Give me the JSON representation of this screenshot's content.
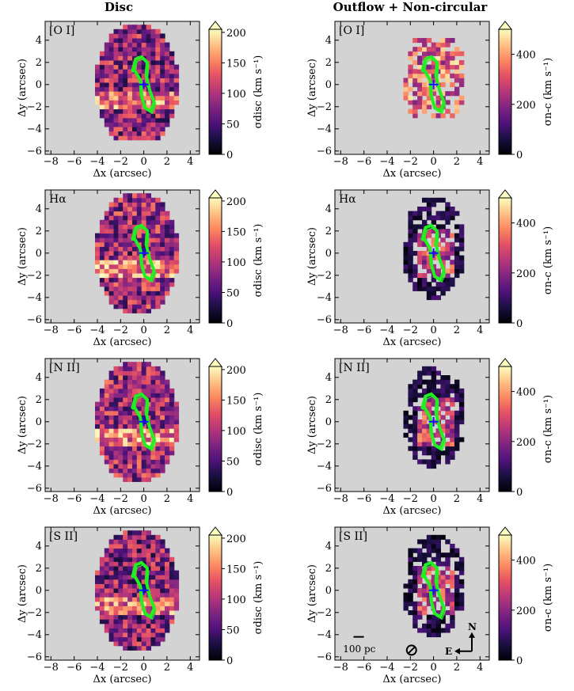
{
  "column_titles": {
    "disc": "Disc",
    "outflow": "Outflow + Non-circular"
  },
  "chart_data": {
    "type": "heatmap",
    "x_label": "Δx (arcsec)",
    "y_label": "Δy (arcsec)",
    "xlim": [
      -8.5,
      4.8
    ],
    "ylim": [
      -6.3,
      5.7
    ],
    "x_ticks": [
      -8,
      -6,
      -4,
      -2,
      0,
      2,
      4
    ],
    "y_ticks": [
      -6,
      -4,
      -2,
      0,
      2,
      4
    ],
    "x_tick_labels": [
      "−8",
      "−6",
      "−4",
      "−2",
      "0",
      "2",
      "4"
    ],
    "y_tick_labels": [
      "−6",
      "−4",
      "−2",
      "0",
      "2",
      "4"
    ],
    "colormap": "magma",
    "lines": [
      "[O I]",
      "Hα",
      "[N II]",
      "[S II]"
    ],
    "panels": [
      {
        "column": "disc",
        "line": "[O I]",
        "label": "[O I]",
        "cbar_label": "σdisc (km s⁻¹)",
        "cbar_range": [
          0,
          205
        ],
        "cbar_ticks": [
          0,
          50,
          100,
          150,
          200
        ],
        "cbar_tick_labels": [
          "0",
          "50",
          "100",
          "150",
          "200"
        ],
        "mean_sigma": 85
      },
      {
        "column": "outflow",
        "line": "[O I]",
        "label": "[O I]",
        "cbar_label": "σn-c (km s⁻¹)",
        "cbar_range": [
          0,
          500
        ],
        "cbar_ticks": [
          0,
          200,
          400
        ],
        "cbar_tick_labels": [
          "0",
          "200",
          "400"
        ],
        "mean_sigma": 120
      },
      {
        "column": "disc",
        "line": "Hα",
        "label": "Hα",
        "cbar_label": "σdisc (km s⁻¹)",
        "cbar_range": [
          0,
          205
        ],
        "cbar_ticks": [
          0,
          50,
          100,
          150,
          200
        ],
        "cbar_tick_labels": [
          "0",
          "50",
          "100",
          "150",
          "200"
        ],
        "mean_sigma": 90
      },
      {
        "column": "outflow",
        "line": "Hα",
        "label": "Hα",
        "cbar_label": "σn-c (km s⁻¹)",
        "cbar_range": [
          0,
          500
        ],
        "cbar_ticks": [
          0,
          200,
          400
        ],
        "cbar_tick_labels": [
          "0",
          "200",
          "400"
        ],
        "mean_sigma": 90
      },
      {
        "column": "disc",
        "line": "[N II]",
        "label": "[N II]",
        "cbar_label": "σdisc (km s⁻¹)",
        "cbar_range": [
          0,
          205
        ],
        "cbar_ticks": [
          0,
          50,
          100,
          150,
          200
        ],
        "cbar_tick_labels": [
          "0",
          "50",
          "100",
          "150",
          "200"
        ],
        "mean_sigma": 90
      },
      {
        "column": "outflow",
        "line": "[N II]",
        "label": "[N II]",
        "cbar_label": "σn-c (km s⁻¹)",
        "cbar_range": [
          0,
          500
        ],
        "cbar_ticks": [
          0,
          200,
          400
        ],
        "cbar_tick_labels": [
          "0",
          "200",
          "400"
        ],
        "mean_sigma": 150
      },
      {
        "column": "disc",
        "line": "[S II]",
        "label": "[S II]",
        "cbar_label": "σdisc (km s⁻¹)",
        "cbar_range": [
          0,
          205
        ],
        "cbar_ticks": [
          0,
          50,
          100,
          150,
          200
        ],
        "cbar_tick_labels": [
          "0",
          "50",
          "100",
          "150",
          "200"
        ],
        "mean_sigma": 80
      },
      {
        "column": "outflow",
        "line": "[S II]",
        "label": "[S II]",
        "cbar_label": "σn-c (km s⁻¹)",
        "cbar_range": [
          0,
          500
        ],
        "cbar_ticks": [
          0,
          200,
          400
        ],
        "cbar_tick_labels": [
          "0",
          "200",
          "400"
        ],
        "mean_sigma": 110
      }
    ],
    "annotations": {
      "scale_bar": "100 pc",
      "compass_north": "N",
      "compass_east": "E"
    }
  },
  "colors": {
    "background": "#d3d3d3",
    "contour": "#22ee22",
    "nucleus_marker": "#1010ff"
  }
}
